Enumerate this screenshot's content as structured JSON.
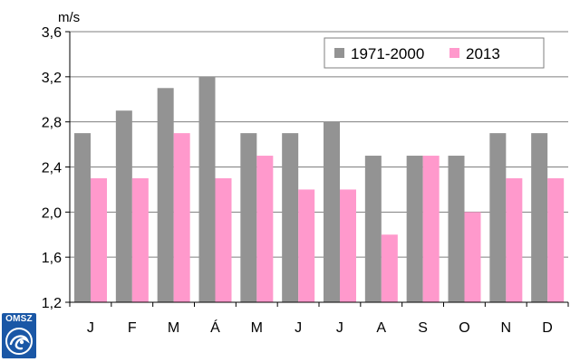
{
  "chart_data": {
    "type": "bar",
    "ylabel_unit": "m/s",
    "categories": [
      "J",
      "F",
      "M",
      "Á",
      "M",
      "J",
      "J",
      "A",
      "S",
      "O",
      "N",
      "D"
    ],
    "series": [
      {
        "name": "1971-2000",
        "color": "#939393",
        "values": [
          2.7,
          2.9,
          3.1,
          3.2,
          2.7,
          2.7,
          2.8,
          2.5,
          2.5,
          2.5,
          2.7,
          2.7
        ]
      },
      {
        "name": "2013",
        "color": "#ff99cc",
        "values": [
          2.3,
          2.3,
          2.7,
          2.3,
          2.5,
          2.2,
          2.2,
          1.8,
          2.5,
          2.0,
          2.3,
          2.3
        ]
      }
    ],
    "ylim": [
      1.2,
      3.6
    ],
    "yticks": [
      "1,2",
      "1,6",
      "2,0",
      "2,4",
      "2,8",
      "3,2",
      "3,6"
    ],
    "grid": true,
    "legend_position": "top-right"
  },
  "logo": {
    "text": "OMSZ",
    "icon": "omsz-emblem-icon"
  }
}
